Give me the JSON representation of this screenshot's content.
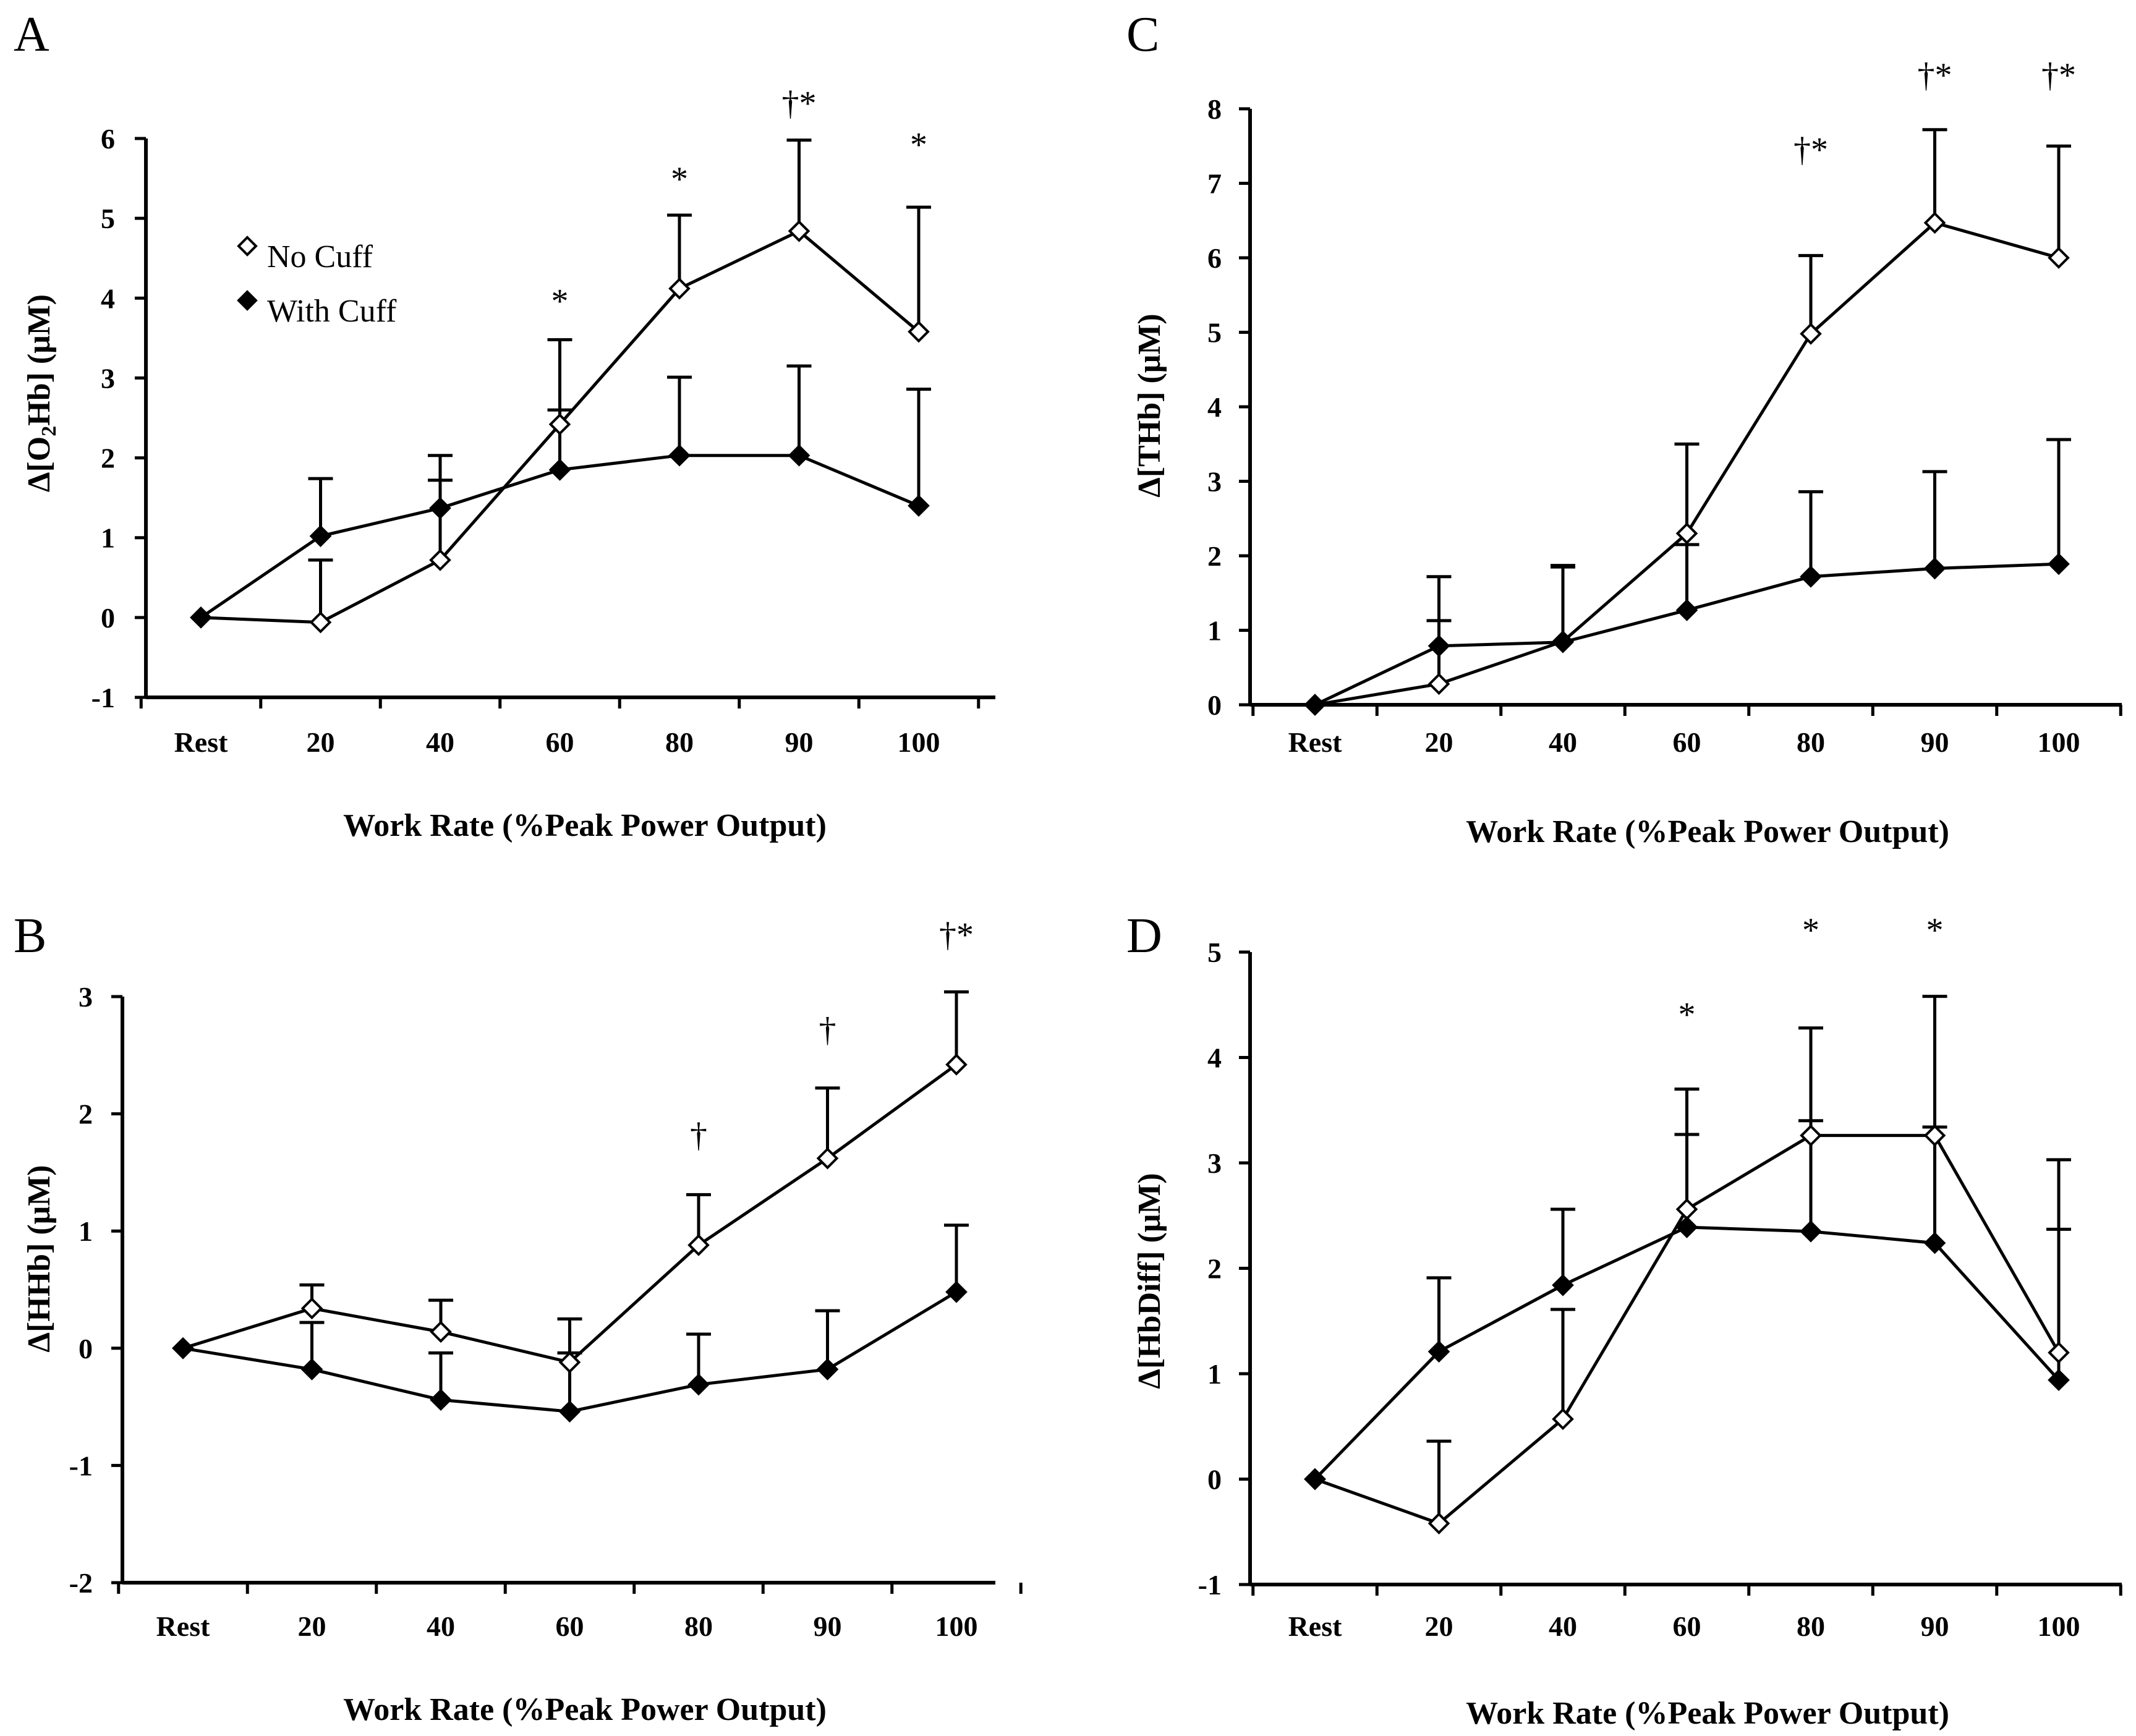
{
  "figure": {
    "colors": {
      "line": "#000000",
      "open_fill": "#ffffff",
      "closed_fill": "#000000"
    }
  },
  "legend": {
    "no_cuff": "No Cuff",
    "with_cuff": "With Cuff"
  },
  "chart_data": [
    {
      "panel": "A",
      "type": "line",
      "categories": [
        "Rest",
        "20",
        "40",
        "60",
        "80",
        "90",
        "100"
      ],
      "xlabel": "Work Rate (%Peak Power Output)",
      "ylabel_prefix": "Δ[O",
      "ylabel_sub": "2",
      "ylabel_suffix": "Hb] (μM)",
      "ylim": [
        -1,
        6
      ],
      "yticks": [
        "-1",
        "0",
        "1",
        "2",
        "3",
        "4",
        "5",
        "6"
      ],
      "series": [
        {
          "name": "No Cuff",
          "marker": "open-diamond",
          "values": [
            0,
            -0.06,
            0.72,
            2.42,
            4.12,
            4.84,
            3.58
          ],
          "errors": [
            0,
            0.78,
            1.0,
            1.06,
            0.92,
            1.14,
            1.56
          ]
        },
        {
          "name": "With Cuff",
          "marker": "filled-diamond",
          "values": [
            0,
            1.02,
            1.37,
            1.85,
            2.03,
            2.03,
            1.4
          ],
          "errors": [
            0,
            0.72,
            0.66,
            0.75,
            0.98,
            1.12,
            1.46
          ]
        }
      ],
      "annotations": [
        {
          "category": "60",
          "text": "*",
          "y": 3.82
        },
        {
          "category": "80",
          "text": "*",
          "y": 5.35
        },
        {
          "category": "90",
          "text": "†*",
          "y": 6.3
        },
        {
          "category": "100",
          "text": "*",
          "y": 5.78
        }
      ]
    },
    {
      "panel": "B",
      "type": "line",
      "categories": [
        "Rest",
        "20",
        "40",
        "60",
        "80",
        "90",
        "100"
      ],
      "xlabel": "Work Rate (%Peak Power Output)",
      "ylabel": "Δ[HHb] (μM)",
      "ylim": [
        -2,
        3
      ],
      "yticks": [
        "-2",
        "-1",
        "0",
        "1",
        "2",
        "3"
      ],
      "series": [
        {
          "name": "No Cuff",
          "marker": "open-diamond",
          "values": [
            0,
            0.34,
            0.14,
            -0.12,
            0.88,
            1.62,
            2.42
          ],
          "errors": [
            0,
            0.2,
            0.27,
            0.37,
            0.43,
            0.6,
            0.62
          ]
        },
        {
          "name": "With Cuff",
          "marker": "filled-diamond",
          "values": [
            0,
            -0.18,
            -0.44,
            -0.54,
            -0.31,
            -0.18,
            0.48
          ],
          "errors": [
            0,
            0.4,
            0.4,
            0.5,
            0.43,
            0.5,
            0.57
          ]
        }
      ],
      "annotations": [
        {
          "category": "80",
          "text": "†",
          "y": 1.72
        },
        {
          "category": "90",
          "text": "†",
          "y": 2.62
        },
        {
          "category": "100",
          "text": "†*",
          "y": 3.43
        }
      ]
    },
    {
      "panel": "C",
      "type": "line",
      "categories": [
        "Rest",
        "20",
        "40",
        "60",
        "80",
        "90",
        "100"
      ],
      "xlabel": "Work Rate (%Peak Power Output)",
      "ylabel": "Δ[THb] (μM)",
      "ylim": [
        0,
        8
      ],
      "yticks": [
        "0",
        "1",
        "2",
        "3",
        "4",
        "5",
        "6",
        "7",
        "8"
      ],
      "series": [
        {
          "name": "No Cuff",
          "marker": "open-diamond",
          "values": [
            0,
            0.28,
            0.85,
            2.3,
            4.98,
            6.47,
            6.0
          ],
          "errors": [
            0,
            0.85,
            1.0,
            1.2,
            1.05,
            1.25,
            1.5
          ]
        },
        {
          "name": "With Cuff",
          "marker": "filled-diamond",
          "values": [
            0,
            0.79,
            0.84,
            1.27,
            1.72,
            1.83,
            1.89
          ],
          "errors": [
            0,
            0.93,
            1.03,
            0.88,
            1.14,
            1.3,
            1.67
          ]
        }
      ],
      "annotations": [
        {
          "category": "80",
          "text": "†*",
          "y": 7.3
        },
        {
          "category": "90",
          "text": "†*",
          "y": 8.3
        },
        {
          "category": "100",
          "text": "†*",
          "y": 8.3
        }
      ]
    },
    {
      "panel": "D",
      "type": "line",
      "categories": [
        "Rest",
        "20",
        "40",
        "60",
        "80",
        "90",
        "100"
      ],
      "xlabel": "Work Rate (%Peak Power Output)",
      "ylabel": "Δ[HbDiff] (μM)",
      "ylim": [
        -1,
        5
      ],
      "yticks": [
        "-1",
        "0",
        "1",
        "2",
        "3",
        "4",
        "5"
      ],
      "series": [
        {
          "name": "No Cuff",
          "marker": "open-diamond",
          "values": [
            0,
            -0.42,
            0.57,
            2.56,
            3.26,
            3.26,
            1.2
          ],
          "errors": [
            0,
            0.78,
            1.04,
            1.14,
            1.02,
            1.32,
            1.83
          ]
        },
        {
          "name": "With Cuff",
          "marker": "filled-diamond",
          "values": [
            0,
            1.21,
            1.84,
            2.39,
            2.35,
            2.24,
            0.94
          ],
          "errors": [
            0,
            0.7,
            0.72,
            0.88,
            1.05,
            1.1,
            1.43
          ]
        }
      ],
      "annotations": [
        {
          "category": "60",
          "text": "*",
          "y": 4.3
        },
        {
          "category": "80",
          "text": "*",
          "y": 5.1
        },
        {
          "category": "90",
          "text": "*",
          "y": 5.1
        }
      ]
    }
  ]
}
